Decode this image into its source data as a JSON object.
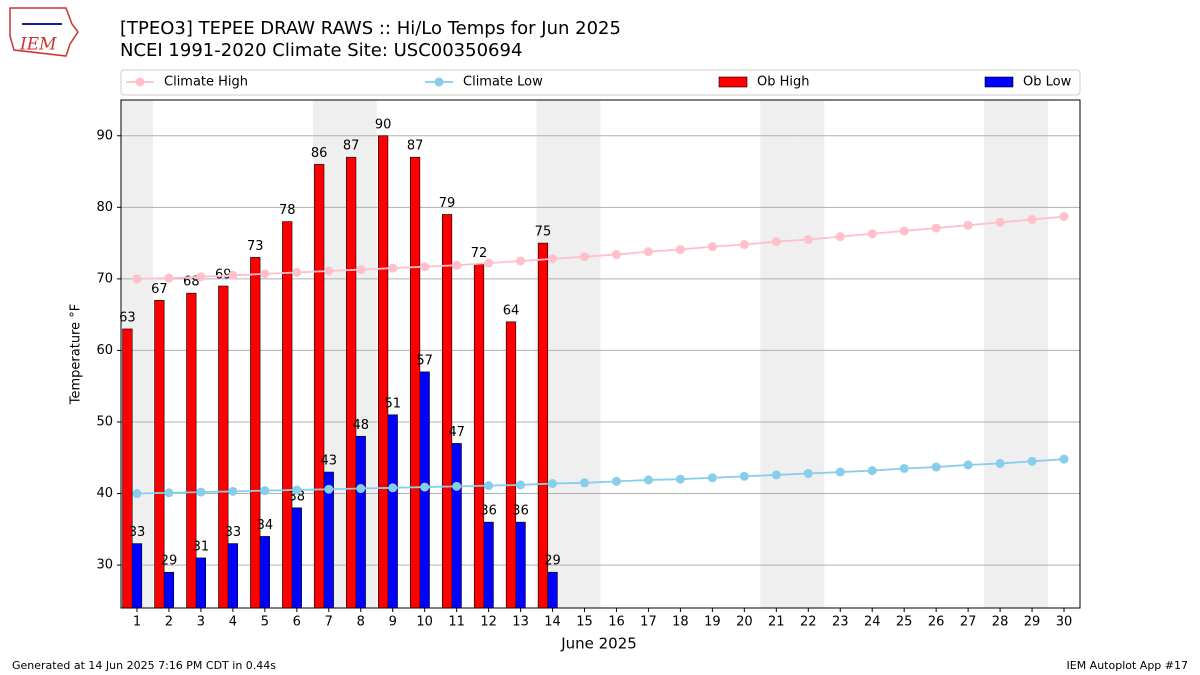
{
  "logo_text": "IEM",
  "chart_data": {
    "type": "bar",
    "title": "[TPEO3] TEPEE DRAW RAWS :: Hi/Lo Temps for Jun 2025",
    "subtitle": "NCEI 1991-2020 Climate Site: USC00350694",
    "x_label": "June 2025",
    "y_label": "Temperature $^\\circ$F",
    "x": [
      1,
      2,
      3,
      4,
      5,
      6,
      7,
      8,
      9,
      10,
      11,
      12,
      13,
      14,
      15,
      16,
      17,
      18,
      19,
      20,
      21,
      22,
      23,
      24,
      25,
      26,
      27,
      28,
      29,
      30
    ],
    "xlim": [
      0.5,
      30.5
    ],
    "xticks": [
      1,
      2,
      3,
      4,
      5,
      6,
      7,
      8,
      9,
      10,
      11,
      12,
      13,
      14,
      15,
      16,
      17,
      18,
      19,
      20,
      21,
      22,
      23,
      24,
      25,
      26,
      27,
      28,
      29,
      30
    ],
    "ylim": [
      24,
      95
    ],
    "yticks": [
      30,
      40,
      50,
      60,
      70,
      80,
      90
    ],
    "grid": true,
    "legend": "top",
    "weekend_days": [
      1,
      7,
      8,
      14,
      15,
      21,
      22,
      28,
      29
    ],
    "series": [
      {
        "name": "Climate High",
        "type": "line",
        "color": "#ffc0cb",
        "values": [
          70.0,
          70.1,
          70.3,
          70.5,
          70.7,
          70.9,
          71.1,
          71.3,
          71.5,
          71.7,
          71.9,
          72.2,
          72.5,
          72.8,
          73.1,
          73.4,
          73.8,
          74.1,
          74.5,
          74.8,
          75.2,
          75.5,
          75.9,
          76.3,
          76.7,
          77.1,
          77.5,
          77.9,
          78.3,
          78.7
        ]
      },
      {
        "name": "Climate Low",
        "type": "line",
        "color": "#87ceeb",
        "values": [
          40.0,
          40.1,
          40.2,
          40.3,
          40.4,
          40.5,
          40.6,
          40.7,
          40.8,
          40.9,
          41.0,
          41.1,
          41.2,
          41.4,
          41.5,
          41.7,
          41.9,
          42.0,
          42.2,
          42.4,
          42.6,
          42.8,
          43.0,
          43.2,
          43.5,
          43.7,
          44.0,
          44.2,
          44.5,
          44.8
        ]
      },
      {
        "name": "Ob High",
        "type": "bar",
        "color": "#ff0000",
        "values": [
          63,
          67,
          68,
          69,
          73,
          78,
          86,
          87,
          90,
          87,
          79,
          72,
          64,
          75,
          null,
          null,
          null,
          null,
          null,
          null,
          null,
          null,
          null,
          null,
          null,
          null,
          null,
          null,
          null,
          null
        ]
      },
      {
        "name": "Ob Low",
        "type": "bar",
        "color": "#0000ff",
        "values": [
          33,
          29,
          31,
          33,
          34,
          38,
          43,
          48,
          51,
          57,
          47,
          36,
          36,
          29,
          null,
          null,
          null,
          null,
          null,
          null,
          null,
          null,
          null,
          null,
          null,
          null,
          null,
          null,
          null,
          null
        ]
      }
    ],
    "footer_left": "Generated at 14 Jun 2025 7:16 PM CDT in 0.44s",
    "footer_right": "IEM Autoplot App #17"
  }
}
